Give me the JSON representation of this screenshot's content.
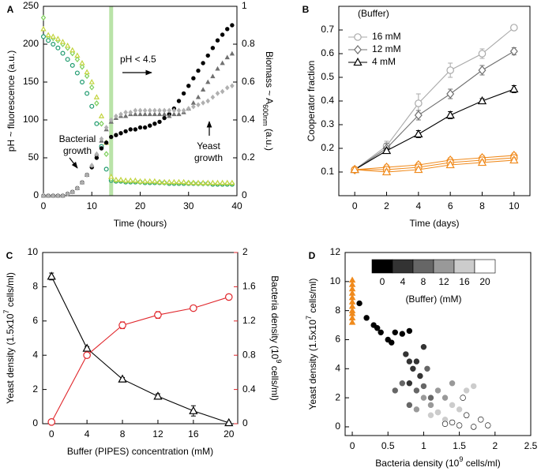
{
  "chart_data": [
    {
      "type": "scatter",
      "panel": "A",
      "xlabel": "Time (hours)",
      "ylabel": "pH ~ fluorescence (a.u.)",
      "y2label": [
        "Biomass ~ A",
        "600nm",
        " (a.u.)"
      ],
      "ycolor": "#1e9a6e",
      "y2color": "#000000",
      "xlim": [
        0,
        40
      ],
      "xticks": [
        0,
        10,
        20,
        30,
        40
      ],
      "ylim": [
        0,
        250
      ],
      "yticks": [
        0,
        50,
        100,
        150,
        200,
        250
      ],
      "y2lim": [
        0,
        1
      ],
      "y2ticks": [
        0,
        0.2,
        0.4,
        0.6,
        0.8,
        1
      ],
      "threshold_x": 14,
      "threshold_color": "#b9e3a8",
      "annotations": [
        [
          "pH < 4.5"
        ],
        [
          "Bacterial",
          "growth"
        ],
        [
          "Yeast",
          "growth"
        ]
      ],
      "x": [
        0,
        1,
        2,
        3,
        4,
        5,
        6,
        7,
        8,
        9,
        10,
        11,
        12,
        13,
        14,
        15,
        16,
        17,
        18,
        19,
        20,
        21,
        22,
        23,
        24,
        25,
        26,
        27,
        28,
        29,
        30,
        31,
        32,
        33,
        34,
        35,
        36,
        37,
        38,
        39
      ],
      "series": [
        {
          "color": "#1e9a6e",
          "marker": "circle",
          "filled": false,
          "values": [
            210,
            205,
            200,
            195,
            188,
            180,
            172,
            162,
            150,
            135,
            118,
            95,
            65,
            35,
            20,
            19,
            19,
            18,
            18,
            18,
            18,
            17,
            17,
            17,
            17,
            17,
            16,
            16,
            16,
            16,
            16,
            16,
            16,
            16,
            16,
            15,
            15,
            15,
            15,
            15
          ]
        },
        {
          "color": "#7ccf5a",
          "marker": "diamond",
          "filled": false,
          "values": [
            235,
            210,
            208,
            205,
            200,
            195,
            188,
            180,
            170,
            158,
            143,
            122,
            95,
            55,
            22,
            20,
            20,
            19,
            19,
            19,
            18,
            18,
            18,
            18,
            18,
            17,
            17,
            17,
            17,
            17,
            17,
            17,
            16,
            16,
            16,
            16,
            16,
            16,
            16,
            16
          ]
        },
        {
          "color": "#c3d43e",
          "marker": "triangle",
          "filled": false,
          "values": [
            220,
            212,
            210,
            207,
            203,
            198,
            192,
            185,
            175,
            163,
            150,
            130,
            105,
            70,
            25,
            21,
            21,
            20,
            20,
            20,
            19,
            19,
            19,
            19,
            18,
            18,
            18,
            18,
            18,
            18,
            17,
            17,
            17,
            17,
            17,
            17,
            17,
            17,
            17,
            17
          ]
        },
        {
          "color": "#000000",
          "marker": "circle",
          "filled": true,
          "axis": "y2",
          "values": [
            0,
            0,
            0,
            0,
            0,
            0.01,
            0.02,
            0.04,
            0.07,
            0.11,
            0.15,
            0.2,
            0.25,
            0.28,
            0.31,
            0.32,
            0.33,
            0.34,
            0.35,
            0.35,
            0.36,
            0.36,
            0.37,
            0.38,
            0.39,
            0.41,
            0.43,
            0.46,
            0.5,
            0.54,
            0.58,
            0.62,
            0.66,
            0.7,
            0.74,
            0.78,
            0.82,
            0.85,
            0.88,
            0.9
          ]
        },
        {
          "color": "#707070",
          "marker": "triangle",
          "filled": true,
          "axis": "y2",
          "values": [
            0,
            0,
            0,
            0,
            0,
            0.01,
            0.02,
            0.04,
            0.07,
            0.11,
            0.16,
            0.22,
            0.29,
            0.35,
            0.39,
            0.41,
            0.42,
            0.42,
            0.43,
            0.43,
            0.43,
            0.43,
            0.43,
            0.43,
            0.43,
            0.43,
            0.42,
            0.43,
            0.43,
            0.44,
            0.46,
            0.49,
            0.52,
            0.56,
            0.6,
            0.63,
            0.67,
            0.7,
            0.73,
            0.75
          ]
        },
        {
          "color": "#b0b0b0",
          "marker": "diamond",
          "filled": true,
          "axis": "y2",
          "values": [
            0,
            0,
            0,
            0,
            0,
            0.01,
            0.02,
            0.04,
            0.07,
            0.11,
            0.16,
            0.22,
            0.3,
            0.36,
            0.4,
            0.42,
            0.43,
            0.44,
            0.44,
            0.45,
            0.45,
            0.45,
            0.45,
            0.45,
            0.45,
            0.45,
            0.45,
            0.45,
            0.45,
            0.45,
            0.46,
            0.47,
            0.48,
            0.49,
            0.5,
            0.52,
            0.54,
            0.55,
            0.57,
            0.58
          ]
        }
      ]
    },
    {
      "type": "line",
      "panel": "B",
      "xlabel": "Time (days)",
      "ylabel": "Cooperator fraction",
      "legend_title": "(Buffer)",
      "legend": "upper left",
      "xlim": [
        -1,
        11
      ],
      "xticks": [
        0,
        2,
        4,
        6,
        8,
        10
      ],
      "ylim": [
        0,
        0.8
      ],
      "yticks": [
        0.1,
        0.2,
        0.3,
        0.4,
        0.5,
        0.6,
        0.7
      ],
      "x": [
        0,
        2,
        4,
        6,
        8,
        10
      ],
      "series": [
        {
          "name": "16 mM",
          "color": "#aaaaaa",
          "marker": "circle",
          "filled": false,
          "values": [
            0.11,
            0.21,
            0.39,
            0.53,
            0.6,
            0.71
          ],
          "errors": [
            0.01,
            0.02,
            0.04,
            0.03,
            0.02,
            0.01
          ]
        },
        {
          "name": "12 mM",
          "color": "#707070",
          "marker": "diamond",
          "filled": false,
          "values": [
            0.11,
            0.2,
            0.34,
            0.43,
            0.53,
            0.61
          ],
          "errors": [
            0.01,
            0.02,
            0.02,
            0.02,
            0.02,
            0.015
          ]
        },
        {
          "name": "4 mM",
          "color": "#000000",
          "marker": "triangle",
          "filled": false,
          "values": [
            0.11,
            0.19,
            0.26,
            0.34,
            0.4,
            0.45
          ],
          "errors": [
            0.01,
            0.01,
            0.015,
            0.015,
            0.01,
            0.015
          ]
        },
        {
          "color": "#f08a1c",
          "marker": "diamond",
          "filled": false,
          "values": [
            0.11,
            0.12,
            0.13,
            0.15,
            0.16,
            0.17
          ],
          "errors": [
            0.01,
            0.01,
            0.01,
            0.01,
            0.01,
            0.01
          ]
        },
        {
          "color": "#f08a1c",
          "marker": "circle",
          "filled": false,
          "values": [
            0.11,
            0.11,
            0.12,
            0.14,
            0.15,
            0.16
          ],
          "errors": [
            0.01,
            0.01,
            0.01,
            0.01,
            0.01,
            0.01
          ]
        },
        {
          "color": "#f08a1c",
          "marker": "triangle",
          "filled": false,
          "values": [
            0.11,
            0.1,
            0.11,
            0.13,
            0.14,
            0.15
          ],
          "errors": [
            0.01,
            0.01,
            0.01,
            0.01,
            0.01,
            0.01
          ]
        }
      ]
    },
    {
      "type": "line",
      "panel": "C",
      "xlabel": "Buffer (PIPES) concentration (mM)",
      "ylabel": [
        "Yeast density (1.5x10",
        "7",
        " cells/ml)"
      ],
      "y2label": [
        "Bacteria density (10",
        "9",
        " cells/ml)"
      ],
      "ycolor": "#000000",
      "y2color": "#e0262b",
      "xlim": [
        -1,
        21
      ],
      "xticks": [
        0,
        4,
        8,
        12,
        16,
        20
      ],
      "ylim": [
        0,
        10
      ],
      "yticks": [
        0,
        2,
        4,
        6,
        8,
        10
      ],
      "y2lim": [
        0,
        2
      ],
      "y2ticks": [
        0,
        0.4,
        0.8,
        1.2,
        1.6,
        2
      ],
      "x": [
        0,
        4,
        8,
        12,
        16,
        20
      ],
      "series": [
        {
          "color": "#000000",
          "marker": "triangle",
          "filled": false,
          "values": [
            8.6,
            4.4,
            2.6,
            1.6,
            0.75,
            0.05
          ],
          "errors": [
            0.2,
            0.1,
            0.1,
            0.15,
            0.3,
            0.05
          ]
        },
        {
          "color": "#e0262b",
          "marker": "circle",
          "filled": false,
          "axis": "y2",
          "values": [
            0.02,
            0.8,
            1.15,
            1.27,
            1.35,
            1.48
          ],
          "errors": [
            0.02,
            0.03,
            0.04,
            0.04,
            0.03,
            0.03
          ]
        }
      ]
    },
    {
      "type": "scatter",
      "panel": "D",
      "xlabel": [
        "Bacteria density (10",
        "9",
        " cells/ml)"
      ],
      "ylabel": [
        "Yeast density (1.5x10",
        "7",
        " cells/ml)"
      ],
      "xlim": [
        -0.1,
        2.5
      ],
      "xticks": [
        0,
        0.5,
        1,
        1.5,
        2,
        2.5
      ],
      "ylim": [
        -0.6,
        12
      ],
      "yticks": [
        0,
        2,
        4,
        6,
        8,
        10,
        12
      ],
      "colorbar_ticks": [
        0,
        4,
        8,
        12,
        16,
        20
      ],
      "colorbar_label": "(Buffer) (mM)",
      "series": [
        {
          "color": "#000000",
          "marker": "circle",
          "filled": true,
          "x": [
            0.1,
            0.2,
            0.3,
            0.4,
            0.5,
            0.6,
            0.7,
            0.35,
            0.55,
            0.8
          ],
          "values": [
            8.5,
            7.5,
            7.0,
            6.5,
            6.0,
            6.5,
            6.4,
            6.8,
            5.8,
            6.6
          ]
        },
        {
          "color": "#333333",
          "marker": "circle",
          "filled": true,
          "x": [
            0.75,
            0.8,
            0.85,
            0.9,
            0.95,
            0.8,
            1.0
          ],
          "values": [
            5.0,
            4.5,
            4.0,
            4.5,
            3.5,
            3.0,
            5.5
          ]
        },
        {
          "color": "#666666",
          "marker": "circle",
          "filled": true,
          "x": [
            0.6,
            0.7,
            0.9,
            1.0,
            1.05,
            1.1,
            0.8
          ],
          "values": [
            2.5,
            3.0,
            2.5,
            2.8,
            4.0,
            2.0,
            1.5
          ]
        },
        {
          "color": "#999999",
          "marker": "circle",
          "filled": true,
          "x": [
            1.0,
            1.1,
            1.2,
            1.3,
            1.4,
            0.9,
            1.2
          ],
          "values": [
            2.0,
            1.5,
            2.5,
            2.0,
            3.0,
            1.2,
            1.0
          ]
        },
        {
          "color": "#cccccc",
          "marker": "circle",
          "filled": true,
          "x": [
            1.2,
            1.3,
            1.4,
            1.5,
            1.6,
            1.7,
            1.1
          ],
          "values": [
            1.0,
            0.5,
            1.5,
            1.2,
            2.5,
            2.8,
            0.8
          ]
        },
        {
          "color": "#ffffff",
          "marker": "circle",
          "filled": true,
          "x": [
            1.4,
            1.5,
            1.6,
            1.7,
            1.8,
            1.9,
            1.3,
            1.55
          ],
          "values": [
            0.3,
            0.1,
            0.8,
            0.0,
            0.5,
            0.1,
            0.2,
            2.0
          ]
        },
        {
          "color": "#f08a1c",
          "marker": "triangle",
          "filled": true,
          "x": [
            0,
            0,
            0,
            0,
            0,
            0,
            0,
            0,
            0,
            0,
            0
          ],
          "values": [
            7.2,
            7.5,
            7.8,
            8.0,
            8.3,
            8.6,
            8.9,
            9.2,
            9.5,
            9.8,
            10.1
          ]
        }
      ]
    }
  ]
}
